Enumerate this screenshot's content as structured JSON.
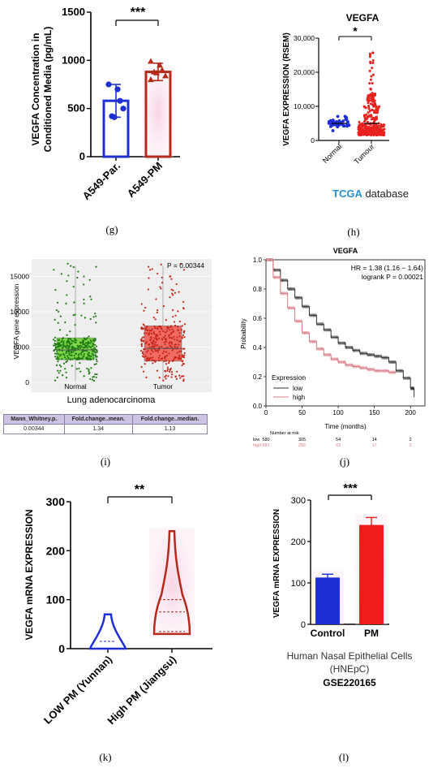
{
  "panels": {
    "g": {
      "label": "(g)",
      "ylabel_line1": "VEGFA Concentration in",
      "ylabel_line2": "Conditioned Media (pg/mL)",
      "sig": "***"
    },
    "h": {
      "label": "(h)",
      "ylabel": "VEGFA EXPRESSION (RSEM)",
      "sig": "*",
      "caption_tcga": "TCGA",
      "caption_rest": " database"
    },
    "i": {
      "label": "(i)",
      "ylabel": "VEGFA gene expression",
      "xlabel": "Lung adenocarcinoma",
      "pvalue": "P = 0.00344",
      "table_headers": [
        "Mann_Whitney.p.",
        "Fold.change..mean.",
        "Fold.change..median."
      ],
      "table_values": [
        "0.00344",
        "1.34",
        "1.13"
      ]
    },
    "j": {
      "label": "(j)",
      "hr": "HR = 1.38 (1.16 − 1.64)",
      "logrank": "logrank P = 0.00021",
      "legend_title": "Expression",
      "legend_low": "low",
      "legend_high": "high",
      "risk_title": "Number at risk",
      "risk_low_label": "low",
      "risk_high_label": "high",
      "risk_low": [
        "580",
        "305",
        "54",
        "14",
        "2"
      ],
      "risk_high": [
        "581",
        "256",
        "63",
        "17",
        "2"
      ]
    },
    "k": {
      "label": "(k)",
      "ylabel": "VEGFA mRNA EXPRESSION",
      "sig": "**"
    },
    "l": {
      "label": "(l)",
      "ylabel": "VEGFA mRNA EXPRESSION",
      "sig": "***",
      "caption_line1": "Human Nasal Epithelial Cells",
      "caption_line2": "(HNEpC)",
      "caption_line3": "GSE220165"
    }
  },
  "colors": {
    "blue": "#1f2fd6",
    "red": "#b52a1a",
    "tumour_red": "#e8211f",
    "green_box": "#7fd64a",
    "red_box": "#ef6b63",
    "km_low": "#333333",
    "km_high": "#d97b86",
    "tcga_blue": "#2a8fd6"
  },
  "chart_data": [
    {
      "id": "g",
      "type": "bar",
      "categories": [
        "A549-Par.",
        "A549-PM"
      ],
      "values": [
        580,
        880
      ],
      "errors": [
        170,
        90
      ],
      "points": [
        [
          750,
          700,
          580,
          420,
          410,
          500
        ],
        [
          990,
          950,
          900,
          880,
          870,
          840,
          800
        ]
      ],
      "ylim": [
        0,
        1500
      ],
      "yticks": [
        0,
        500,
        1000,
        1500
      ]
    },
    {
      "id": "h",
      "type": "scatter",
      "title": "VEGFA",
      "categories": [
        "Normal",
        "Tumour"
      ],
      "values": [
        5000,
        5000
      ],
      "ylim": [
        0,
        30000
      ],
      "yticks": [
        0,
        10000,
        20000,
        30000
      ],
      "ytick_labels": [
        "0",
        "10,000",
        "20,000",
        "30,000"
      ]
    },
    {
      "id": "i",
      "type": "box",
      "categories": [
        "Normal",
        "Tumor"
      ],
      "boxes": [
        {
          "q1": 3200,
          "median": 4600,
          "q3": 6300,
          "min": 200,
          "max": 16500
        },
        {
          "q1": 3000,
          "median": 4800,
          "q3": 8000,
          "min": 200,
          "max": 16500
        }
      ],
      "ylim": [
        0,
        17000
      ],
      "yticks": [
        0,
        5000,
        10000,
        15000
      ]
    },
    {
      "id": "j",
      "type": "line",
      "title": "VEGFA",
      "xlabel": "Time (months)",
      "ylabel": "Probability",
      "xlim": [
        0,
        220
      ],
      "ylim": [
        0,
        1.0
      ],
      "xticks": [
        0,
        50,
        100,
        150,
        200
      ],
      "yticks": [
        0.0,
        0.2,
        0.4,
        0.6,
        0.8,
        1.0
      ],
      "series": [
        {
          "name": "low",
          "x": [
            0,
            10,
            20,
            30,
            40,
            50,
            60,
            70,
            80,
            90,
            100,
            110,
            120,
            130,
            140,
            150,
            160,
            170,
            180,
            190,
            200,
            205
          ],
          "y": [
            1.0,
            0.93,
            0.86,
            0.8,
            0.74,
            0.68,
            0.62,
            0.56,
            0.52,
            0.47,
            0.43,
            0.4,
            0.38,
            0.36,
            0.35,
            0.34,
            0.33,
            0.3,
            0.24,
            0.19,
            0.12,
            0.06
          ]
        },
        {
          "name": "high",
          "x": [
            0,
            10,
            20,
            30,
            40,
            50,
            60,
            70,
            80,
            90,
            100,
            110,
            120,
            130,
            140,
            150,
            160,
            170,
            180
          ],
          "y": [
            1.0,
            0.88,
            0.77,
            0.67,
            0.58,
            0.5,
            0.44,
            0.39,
            0.35,
            0.32,
            0.3,
            0.28,
            0.27,
            0.26,
            0.25,
            0.24,
            0.24,
            0.23,
            0.23
          ]
        }
      ]
    },
    {
      "id": "k",
      "type": "violin",
      "categories": [
        "LOW PM (Yunnan)",
        "High PM (Jiangsu)"
      ],
      "ylim": [
        0,
        300
      ],
      "yticks": [
        0,
        100,
        200,
        300
      ],
      "ranges": [
        [
          0,
          70
        ],
        [
          30,
          240
        ]
      ],
      "quartiles": [
        [
          15,
          40
        ],
        [
          35,
          75,
          100
        ]
      ]
    },
    {
      "id": "l",
      "type": "bar",
      "categories": [
        "Control",
        "PM"
      ],
      "values": [
        113,
        240
      ],
      "errors": [
        8,
        18
      ],
      "ylim": [
        0,
        300
      ],
      "yticks": [
        0,
        100,
        200,
        300
      ]
    }
  ]
}
